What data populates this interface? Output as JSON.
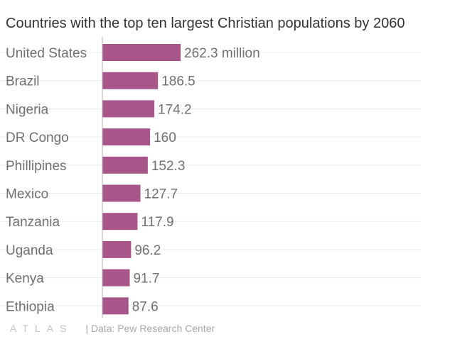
{
  "chart_data": {
    "type": "bar",
    "orientation": "horizontal",
    "title": "Countries with the top ten largest Christian populations by 2060",
    "categories": [
      "United States",
      "Brazil",
      "Nigeria",
      "DR Congo",
      "Phillipines",
      "Mexico",
      "Tanzania",
      "Uganda",
      "Kenya",
      "Ethiopia"
    ],
    "values": [
      262.3,
      186.5,
      174.2,
      160,
      152.3,
      127.7,
      117.9,
      96.2,
      91.7,
      87.6
    ],
    "value_labels": [
      "262.3 million",
      "186.5",
      "174.2",
      "160",
      "152.3",
      "127.7",
      "117.9",
      "96.2",
      "91.7",
      "87.6"
    ],
    "bar_color": "#a8558a",
    "gridlines": true,
    "legend": "none"
  },
  "footer": {
    "brand": "ATLAS",
    "source": "| Data: Pew Research Center"
  }
}
